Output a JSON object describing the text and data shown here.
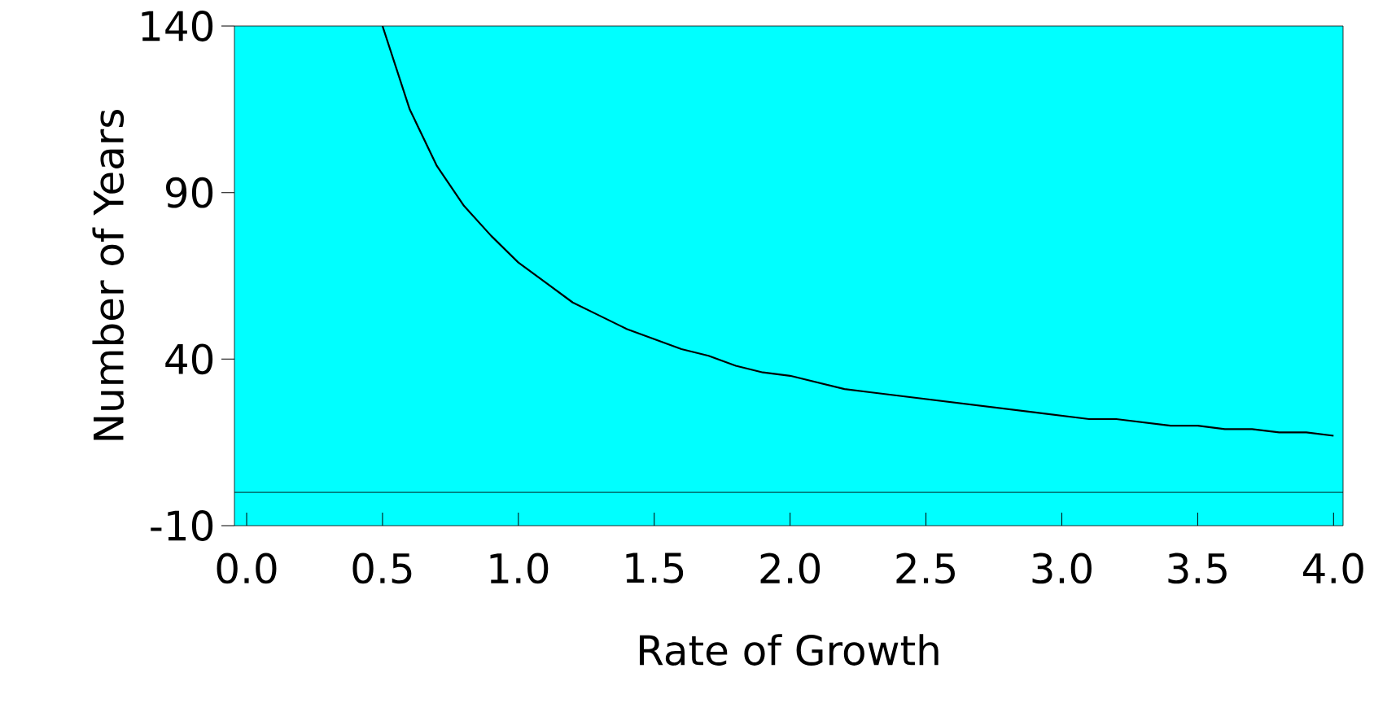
{
  "chart_data": {
    "type": "line",
    "xlabel": "Rate of Growth",
    "ylabel": "Number of Years",
    "x": [
      0.5,
      0.6,
      0.7,
      0.8,
      0.9,
      1.0,
      1.1,
      1.2,
      1.3,
      1.4,
      1.5,
      1.6,
      1.7,
      1.8,
      1.9,
      2.0,
      2.1,
      2.2,
      2.3,
      2.4,
      2.5,
      2.6,
      2.7,
      2.8,
      2.9,
      3.0,
      3.1,
      3.2,
      3.3,
      3.4,
      3.5,
      3.6,
      3.7,
      3.8,
      3.9,
      4.0
    ],
    "series": [
      {
        "color": "#000000",
        "values": [
          140,
          115,
          98,
          86,
          77,
          69,
          63,
          57,
          53,
          49,
          46,
          43,
          41,
          38,
          36,
          35,
          33,
          31,
          30,
          29,
          28,
          27,
          26,
          25,
          24,
          23,
          22,
          22,
          21,
          20,
          20,
          19,
          19,
          18,
          18,
          17
        ]
      }
    ],
    "xlim": [
      -0.045,
      4.035
    ],
    "ylim": [
      -10,
      140
    ],
    "xticks": [
      {
        "value": 0,
        "label": "0.0"
      },
      {
        "value": 0.5,
        "label": "0.5"
      },
      {
        "value": 1,
        "label": "1.0"
      },
      {
        "value": 1.5,
        "label": "1.5"
      },
      {
        "value": 2,
        "label": "2.0"
      },
      {
        "value": 2.5,
        "label": "2.5"
      },
      {
        "value": 3,
        "label": "3.0"
      },
      {
        "value": 3.5,
        "label": "3.5"
      },
      {
        "value": 4,
        "label": "4.0"
      }
    ],
    "yticks": [
      -10,
      40,
      90,
      140
    ],
    "ref_lines": [
      {
        "axis": "y",
        "value": 0,
        "color": "#000000"
      }
    ],
    "grid": false,
    "marker": "none",
    "line_style": "solid"
  }
}
